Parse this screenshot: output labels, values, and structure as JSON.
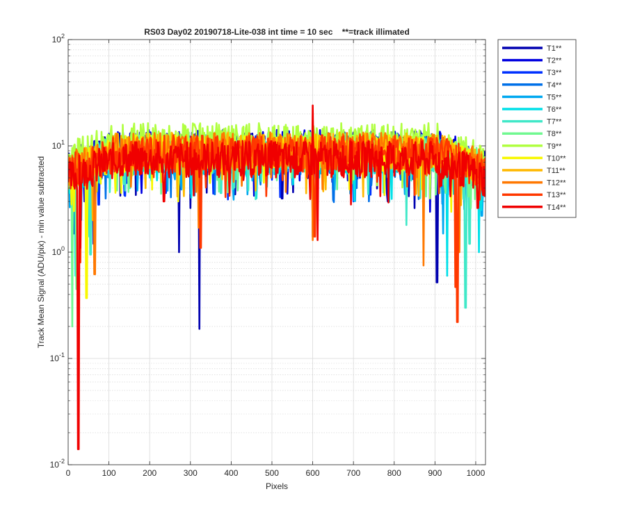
{
  "chart_data": {
    "type": "line",
    "title": "RS03 Day02 20190718-Lite-038 int time = 10 sec    **=track illimated",
    "xlabel": "Pixels",
    "ylabel": "Track Mean Signal (ADU/pix) - min value subtracted",
    "xlim": [
      0,
      1024
    ],
    "ylim": [
      0.01,
      100
    ],
    "yscale": "log",
    "grid": true,
    "minor_grid": true,
    "legend_position": "outside-top-right",
    "x_ticks": [
      "0",
      "100",
      "200",
      "300",
      "400",
      "500",
      "600",
      "700",
      "800",
      "900",
      "1000"
    ],
    "y_ticks": [
      {
        "base": "10",
        "exp": "-2"
      },
      {
        "base": "10",
        "exp": "-1"
      },
      {
        "base": "10",
        "exp": "0"
      },
      {
        "base": "10",
        "exp": "1"
      },
      {
        "base": "10",
        "exp": "2"
      }
    ],
    "x_step": 2,
    "series": [
      {
        "name": "T1**",
        "color": "#0000B0",
        "base": 9,
        "dips": [
          [
            15,
            1.5
          ],
          [
            62,
            1.2
          ],
          [
            128,
            3.4
          ],
          [
            272,
            1.0
          ],
          [
            300,
            2.6
          ],
          [
            322,
            0.19
          ],
          [
            410,
            3.5
          ],
          [
            525,
            3.2
          ],
          [
            600,
            1.4
          ],
          [
            785,
            3.0
          ],
          [
            850,
            2.6
          ],
          [
            905,
            0.52
          ]
        ]
      },
      {
        "name": "T2**",
        "color": "#0000E0",
        "base": 9.5,
        "dips": [
          [
            40,
            3.0
          ],
          [
            180,
            3.6
          ],
          [
            456,
            3.4
          ],
          [
            612,
            3.0
          ],
          [
            888,
            2.4
          ]
        ]
      },
      {
        "name": "T3**",
        "color": "#0030FF",
        "base": 8.5,
        "dips": [
          [
            75,
            2.8
          ],
          [
            240,
            3.6
          ],
          [
            520,
            3.3
          ],
          [
            700,
            3.0
          ],
          [
            930,
            2.8
          ]
        ]
      },
      {
        "name": "T4**",
        "color": "#0070E8",
        "base": 8,
        "dips": [
          [
            92,
            3.2
          ],
          [
            360,
            3.5
          ],
          [
            650,
            3.1
          ],
          [
            960,
            3.0
          ]
        ]
      },
      {
        "name": "T5**",
        "color": "#00A8F0",
        "base": 8,
        "dips": [
          [
            32,
            2.0
          ],
          [
            170,
            3.8
          ],
          [
            440,
            3.5
          ],
          [
            920,
            1.5
          ],
          [
            1015,
            2.2
          ]
        ]
      },
      {
        "name": "T6**",
        "color": "#00E0E8",
        "base": 8,
        "dips": [
          [
            18,
            0.6
          ],
          [
            52,
            1.4
          ],
          [
            930,
            0.6
          ],
          [
            1008,
            1.0
          ]
        ]
      },
      {
        "name": "T7**",
        "color": "#40E8C8",
        "base": 8.5,
        "dips": [
          [
            55,
            0.95
          ],
          [
            140,
            3.8
          ],
          [
            375,
            3.6
          ],
          [
            830,
            1.8
          ],
          [
            975,
            0.3
          ],
          [
            985,
            1.2
          ]
        ]
      },
      {
        "name": "T8**",
        "color": "#70F890",
        "base": 9,
        "dips": [
          [
            10,
            0.2
          ],
          [
            20,
            0.45
          ],
          [
            120,
            3.8
          ],
          [
            660,
            3.9
          ]
        ]
      },
      {
        "name": "T9**",
        "color": "#B0FF40",
        "base": 11,
        "dips": [
          [
            45,
            1.5
          ],
          [
            320,
            3.0
          ],
          [
            888,
            3.2
          ]
        ]
      },
      {
        "name": "T10**",
        "color": "#F8F800",
        "base": 8.5,
        "dips": [
          [
            45,
            0.37
          ],
          [
            270,
            3.0
          ],
          [
            480,
            4.5
          ],
          [
            690,
            3.9
          ],
          [
            940,
            2.4
          ]
        ]
      },
      {
        "name": "T11**",
        "color": "#FFB800",
        "base": 9,
        "dips": [
          [
            60,
            2.0
          ],
          [
            190,
            4.0
          ],
          [
            460,
            3.8
          ],
          [
            860,
            3.4
          ]
        ]
      },
      {
        "name": "T12**",
        "color": "#FF7800",
        "base": 9,
        "dips": [
          [
            65,
            0.62
          ],
          [
            320,
            1.7
          ],
          [
            600,
            1.3
          ],
          [
            872,
            0.75
          ],
          [
            960,
            1.0
          ]
        ]
      },
      {
        "name": "T13**",
        "color": "#FF3800",
        "base": 8.5,
        "dips": [
          [
            30,
            0.8
          ],
          [
            325,
            1.1
          ],
          [
            605,
            1.4
          ],
          [
            950,
            0.47
          ],
          [
            955,
            0.22
          ]
        ]
      },
      {
        "name": "T14**",
        "color": "#F00000",
        "base": 7.5,
        "peaks": [
          [
            600,
            24
          ]
        ],
        "dips": [
          [
            25,
            0.014
          ],
          [
            30,
            1.1
          ],
          [
            235,
            3.0
          ],
          [
            612,
            1.3
          ],
          [
            1005,
            2.6
          ]
        ]
      }
    ]
  }
}
